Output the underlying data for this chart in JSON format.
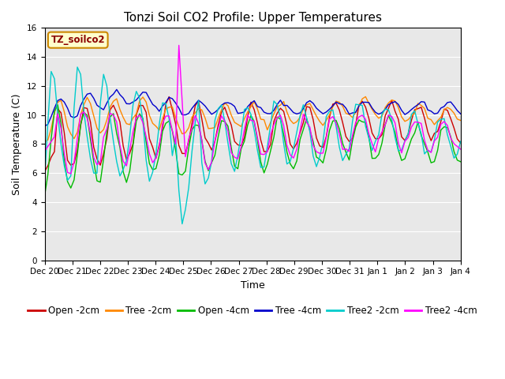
{
  "title": "Tonzi Soil CO2 Profile: Upper Temperatures",
  "ylabel": "Soil Temperature (C)",
  "xlabel": "Time",
  "watermark": "TZ_soilco2",
  "ylim": [
    0,
    16
  ],
  "fig_bg": "#ffffff",
  "plot_bg": "#e8e8e8",
  "series": [
    {
      "label": "Open -2cm",
      "color": "#cc0000"
    },
    {
      "label": "Tree -2cm",
      "color": "#ff8800"
    },
    {
      "label": "Open -4cm",
      "color": "#00bb00"
    },
    {
      "label": "Tree -4cm",
      "color": "#0000cc"
    },
    {
      "label": "Tree2 -2cm",
      "color": "#00cccc"
    },
    {
      "label": "Tree2 -4cm",
      "color": "#ff00ff"
    }
  ],
  "xtick_labels": [
    "Dec 20",
    "Dec 21",
    "Dec 22",
    "Dec 23",
    "Dec 24",
    "Dec 25",
    "Dec 26",
    "Dec 27",
    "Dec 28",
    "Dec 29",
    "Dec 30",
    "Dec 31",
    "Jan 1",
    "Jan 2",
    "Jan 3",
    "Jan 4"
  ],
  "grid_color": "#ffffff",
  "title_fontsize": 11,
  "tick_fontsize": 7.5,
  "legend_fontsize": 8.5
}
